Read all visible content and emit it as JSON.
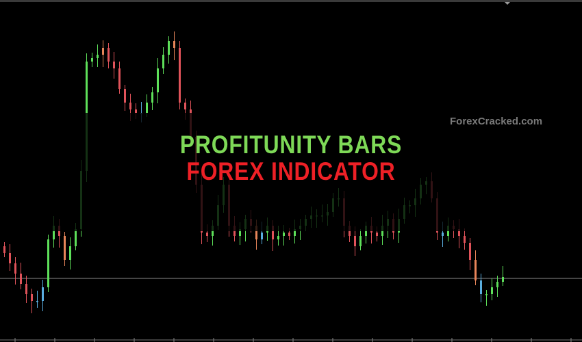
{
  "overlay": {
    "title_line1": "PROFITUNITY BARS",
    "title_line2": "FOREX INDICATOR",
    "watermark": "ForexCracked.com"
  },
  "colors": {
    "up": "#5ee05a",
    "down": "#e0535a",
    "squat": "#5aaee0",
    "fade": "#e8855a",
    "level_line": "#8a8a8a",
    "title_green": "#7ed957",
    "title_red": "#ee2026"
  },
  "chart_data": {
    "type": "candlestick",
    "title": "",
    "xlabel": "",
    "ylabel": "",
    "grid": false,
    "first_open": 140,
    "close": [
      130,
      115,
      100,
      85,
      70,
      60,
      60,
      80,
      150,
      170,
      155,
      120,
      140,
      165,
      250,
      410,
      415,
      420,
      430,
      410,
      400,
      370,
      350,
      340,
      335,
      335,
      350,
      365,
      400,
      420,
      440,
      430,
      350,
      340,
      300,
      230,
      160,
      155,
      170,
      200,
      230,
      170,
      155,
      165,
      180,
      170,
      150,
      160,
      170,
      150,
      155,
      160,
      155,
      165,
      170,
      180,
      185,
      185,
      185,
      190,
      210,
      210,
      170,
      155,
      140,
      155,
      170,
      160,
      155,
      170,
      180,
      160,
      180,
      200,
      200,
      210,
      230,
      235,
      210,
      160,
      155,
      170,
      165,
      155,
      145,
      120,
      90,
      70,
      70,
      80,
      88,
      95
    ],
    "color_overrides": {
      "6": "squat",
      "7": "squat",
      "11": "fade",
      "18": "fade",
      "25": "squat",
      "31": "fade",
      "46": "fade",
      "47": "squat",
      "80": "squat",
      "86": "fade",
      "87": "squat"
    },
    "horizontal_level": 93,
    "ylim": [
      0,
      500
    ]
  }
}
